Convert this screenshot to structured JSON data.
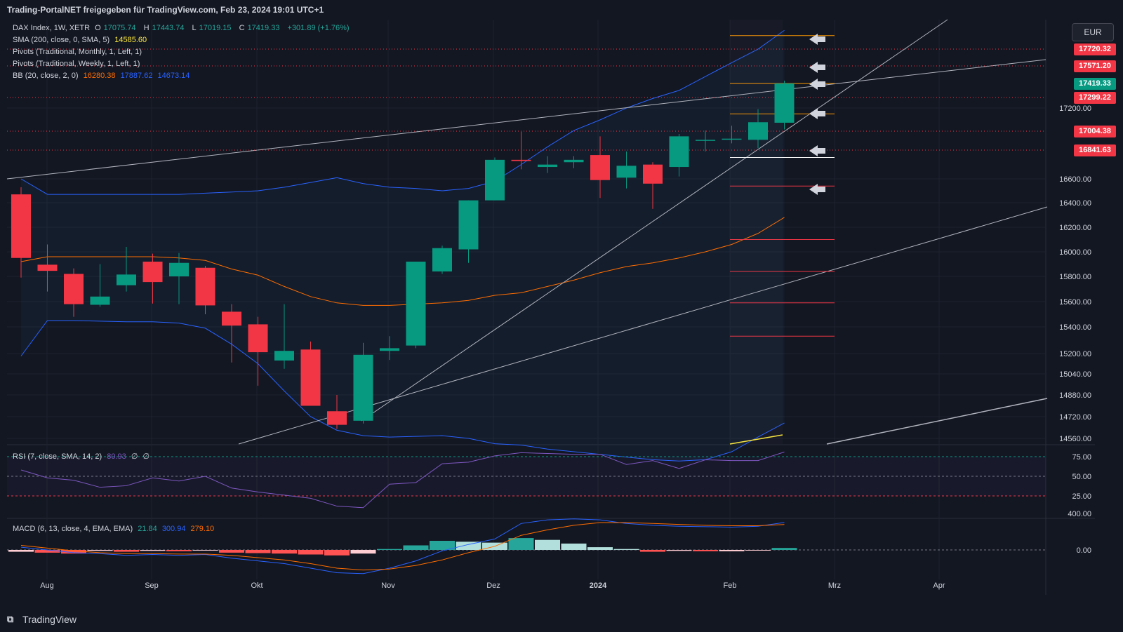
{
  "header": {
    "attribution": "Trading-PortalNET freigegeben für TradingView.com, Feb 23, 2024 19:01 UTC+1"
  },
  "footer": {
    "brand": "TradingView"
  },
  "currency": "EUR",
  "legend": {
    "symbol": "DAX Index, 1W, XETR",
    "open_label": "O",
    "open": "17075.74",
    "high_label": "H",
    "high": "17443.74",
    "low_label": "L",
    "low": "17019.15",
    "close_label": "C",
    "close": "17419.33",
    "change": "+301.89 (+1.76%)",
    "sma_label": "SMA (200, close, 0, SMA, 5)",
    "sma_value": "14585.60",
    "pivots_monthly": "Pivots (Traditional, Monthly, 1, Left, 1)",
    "pivots_weekly": "Pivots (Traditional, Weekly, 1, Left, 1)",
    "bb_label": "BB (20, close, 2, 0)",
    "bb_basis": "16280.38",
    "bb_upper": "17887.62",
    "bb_lower": "14673.14"
  },
  "rsi_legend": {
    "label": "RSI (7, close, SMA, 14, 2)",
    "value": "80.93",
    "extra1": "∅",
    "extra2": "∅"
  },
  "macd_legend": {
    "label": "MACD (6, 13, close, 4, EMA, EMA)",
    "hist": "21.84",
    "macd": "300.94",
    "signal": "279.10"
  },
  "price_tags": [
    {
      "label": "17720.32",
      "value": 17720.32,
      "color": "#f23645"
    },
    {
      "label": "17571.20",
      "value": 17571.2,
      "color": "#f23645"
    },
    {
      "label": "17419.33",
      "value": 17419.33,
      "color": "#089981"
    },
    {
      "label": "17299.22",
      "value": 17299.22,
      "color": "#f23645"
    },
    {
      "label": "17004.38",
      "value": 17004.38,
      "color": "#f23645"
    },
    {
      "label": "16841.63",
      "value": 16841.63,
      "color": "#f23645"
    }
  ],
  "chart_data": {
    "type": "candlestick",
    "title": "DAX Index, 1W, XETR",
    "x_ticks": [
      "Aug",
      "Sep",
      "Okt",
      "Nov",
      "Dez",
      "2024",
      "Feb",
      "Mrz",
      "Apr"
    ],
    "y_ticks": [
      "17200.00",
      "16600.00",
      "16400.00",
      "16200.00",
      "16000.00",
      "15800.00",
      "15600.00",
      "15400.00",
      "15200.00",
      "15040.00",
      "14880.00",
      "14720.00",
      "14560.00"
    ],
    "candles": [
      {
        "o": 16470,
        "h": 16530,
        "l": 15790,
        "c": 15950
      },
      {
        "o": 15895,
        "h": 16060,
        "l": 15680,
        "c": 15845
      },
      {
        "o": 15820,
        "h": 15865,
        "l": 15480,
        "c": 15580
      },
      {
        "o": 15575,
        "h": 15900,
        "l": 15560,
        "c": 15640
      },
      {
        "o": 15730,
        "h": 16040,
        "l": 15680,
        "c": 15815
      },
      {
        "o": 15920,
        "h": 15985,
        "l": 15585,
        "c": 15755
      },
      {
        "o": 15800,
        "h": 15990,
        "l": 15580,
        "c": 15910
      },
      {
        "o": 15870,
        "h": 15885,
        "l": 15500,
        "c": 15570
      },
      {
        "o": 15520,
        "h": 15580,
        "l": 15130,
        "c": 15410
      },
      {
        "o": 15420,
        "h": 15480,
        "l": 14950,
        "c": 15210
      },
      {
        "o": 15145,
        "h": 15580,
        "l": 15080,
        "c": 15220
      },
      {
        "o": 15230,
        "h": 15290,
        "l": 14800,
        "c": 14800
      },
      {
        "o": 14760,
        "h": 14880,
        "l": 14630,
        "c": 14660
      },
      {
        "o": 14690,
        "h": 15280,
        "l": 14670,
        "c": 15190
      },
      {
        "o": 15220,
        "h": 15330,
        "l": 15150,
        "c": 15240
      },
      {
        "o": 15260,
        "h": 15920,
        "l": 15240,
        "c": 15920
      },
      {
        "o": 15840,
        "h": 16050,
        "l": 15820,
        "c": 16030
      },
      {
        "o": 16020,
        "h": 16420,
        "l": 15910,
        "c": 16420
      },
      {
        "o": 16420,
        "h": 16780,
        "l": 16420,
        "c": 16760
      },
      {
        "o": 16760,
        "h": 17000,
        "l": 16680,
        "c": 16750
      },
      {
        "o": 16700,
        "h": 16790,
        "l": 16650,
        "c": 16720
      },
      {
        "o": 16740,
        "h": 16790,
        "l": 16690,
        "c": 16760
      },
      {
        "o": 16800,
        "h": 16960,
        "l": 16440,
        "c": 16590
      },
      {
        "o": 16610,
        "h": 16830,
        "l": 16520,
        "c": 16710
      },
      {
        "o": 16720,
        "h": 16740,
        "l": 16350,
        "c": 16560
      },
      {
        "o": 16700,
        "h": 16980,
        "l": 16620,
        "c": 16960
      },
      {
        "o": 16930,
        "h": 17010,
        "l": 16830,
        "c": 16930
      },
      {
        "o": 16940,
        "h": 17050,
        "l": 16900,
        "c": 16940
      },
      {
        "o": 16930,
        "h": 17190,
        "l": 16860,
        "c": 17080
      },
      {
        "o": 17075.74,
        "h": 17443.74,
        "l": 17019.15,
        "c": 17419.33
      }
    ],
    "bollinger": {
      "upper": [
        16600,
        16470,
        16470,
        16470,
        16470,
        16470,
        16470,
        16480,
        16490,
        16500,
        16530,
        16570,
        16610,
        16560,
        16530,
        16520,
        16500,
        16520,
        16580,
        16720,
        16870,
        17010,
        17100,
        17200,
        17290,
        17360,
        17480,
        17600,
        17720,
        17887.62
      ],
      "basis": [
        15920,
        15960,
        15960,
        15960,
        15960,
        15960,
        15950,
        15930,
        15860,
        15810,
        15720,
        15640,
        15590,
        15570,
        15570,
        15580,
        15590,
        15610,
        15650,
        15670,
        15720,
        15770,
        15830,
        15880,
        15910,
        15950,
        16000,
        16060,
        16150,
        16280.38
      ],
      "lower": [
        15180,
        15450,
        15450,
        15445,
        15440,
        15440,
        15430,
        15390,
        15270,
        15120,
        14910,
        14720,
        14620,
        14580,
        14570,
        14575,
        14580,
        14560,
        14520,
        14510,
        14480,
        14460,
        14440,
        14420,
        14400,
        14390,
        14400,
        14460,
        14570,
        14673.14
      ]
    },
    "sma_200": 14585.6,
    "pivots_weekly": [
      17720.32,
      17571.2,
      17299.22,
      17004.38,
      16841.63
    ],
    "rsi": [
      58,
      48,
      45,
      36,
      38,
      48,
      44,
      50,
      35,
      30,
      26,
      22,
      12,
      10,
      40,
      42,
      66,
      68,
      76,
      80,
      79,
      78,
      78,
      65,
      70,
      60,
      71,
      70,
      70,
      80.93
    ],
    "macd": {
      "macd": [
        30,
        0,
        -30,
        -40,
        -60,
        -50,
        -60,
        -50,
        -90,
        -120,
        -150,
        -200,
        -250,
        -260,
        -200,
        -120,
        -10,
        60,
        120,
        290,
        330,
        340,
        330,
        290,
        270,
        260,
        255,
        250,
        260,
        300.94
      ],
      "signal": [
        50,
        20,
        -10,
        -30,
        -40,
        -40,
        -45,
        -45,
        -60,
        -85,
        -110,
        -150,
        -200,
        -220,
        -210,
        -170,
        -110,
        -30,
        40,
        160,
        220,
        270,
        300,
        300,
        290,
        280,
        270,
        265,
        265,
        279.1
      ],
      "hist": [
        -20,
        -30,
        -40,
        -10,
        -20,
        -10,
        -15,
        -5,
        -30,
        -35,
        -40,
        -50,
        -60,
        -40,
        10,
        50,
        100,
        90,
        80,
        130,
        110,
        70,
        30,
        10,
        -20,
        -10,
        -15,
        -15,
        -5,
        21.84
      ]
    }
  }
}
